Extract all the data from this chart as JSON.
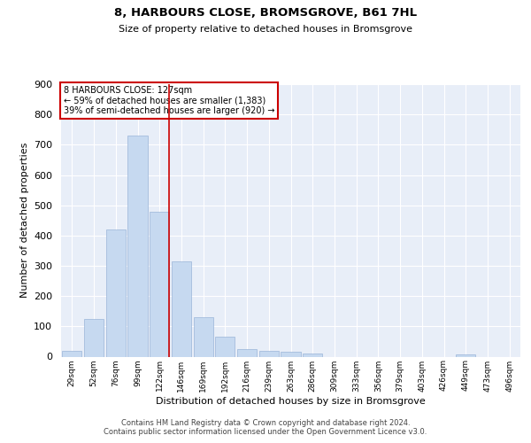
{
  "title1": "8, HARBOURS CLOSE, BROMSGROVE, B61 7HL",
  "title2": "Size of property relative to detached houses in Bromsgrove",
  "xlabel": "Distribution of detached houses by size in Bromsgrove",
  "ylabel": "Number of detached properties",
  "categories": [
    "29sqm",
    "52sqm",
    "76sqm",
    "99sqm",
    "122sqm",
    "146sqm",
    "169sqm",
    "192sqm",
    "216sqm",
    "239sqm",
    "263sqm",
    "286sqm",
    "309sqm",
    "333sqm",
    "356sqm",
    "379sqm",
    "403sqm",
    "426sqm",
    "449sqm",
    "473sqm",
    "496sqm"
  ],
  "values": [
    20,
    125,
    420,
    730,
    480,
    315,
    130,
    65,
    25,
    20,
    15,
    10,
    0,
    0,
    0,
    0,
    0,
    0,
    8,
    0,
    0
  ],
  "bar_color": "#c6d9f0",
  "bar_edge_color": "#9ab5d8",
  "red_line_index": 4,
  "annotation_lines": [
    "8 HARBOURS CLOSE: 127sqm",
    "← 59% of detached houses are smaller (1,383)",
    "39% of semi-detached houses are larger (920) →"
  ],
  "box_edge_color": "#cc0000",
  "ylim_max": 900,
  "yticks": [
    0,
    100,
    200,
    300,
    400,
    500,
    600,
    700,
    800,
    900
  ],
  "background_color": "#e8eef8",
  "grid_color": "#ffffff",
  "footnote1": "Contains HM Land Registry data © Crown copyright and database right 2024.",
  "footnote2": "Contains public sector information licensed under the Open Government Licence v3.0."
}
